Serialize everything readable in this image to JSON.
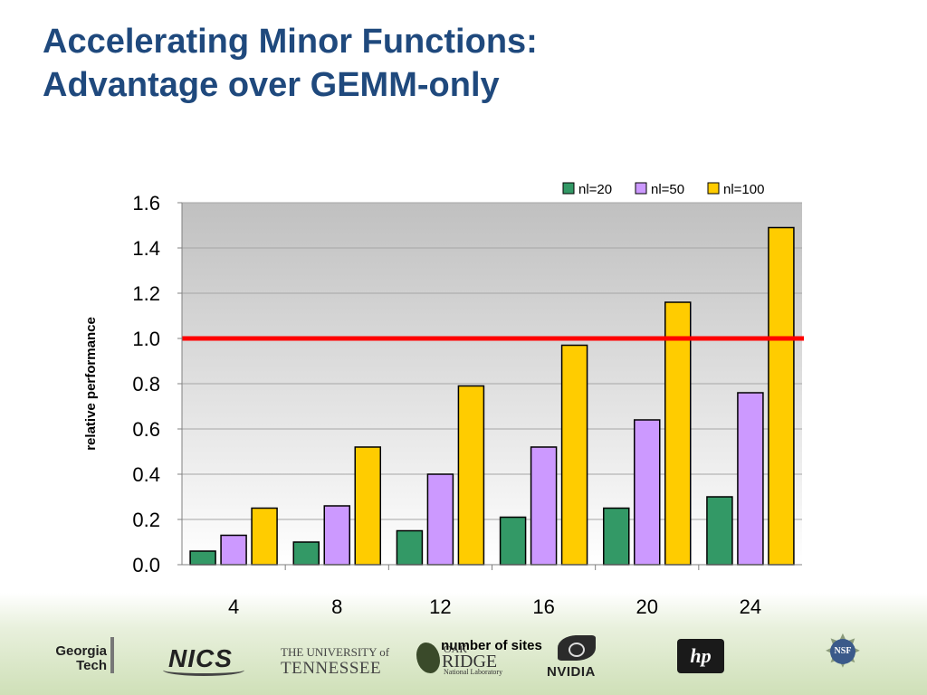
{
  "slide": {
    "title_line1": "Accelerating Minor Functions:",
    "title_line2": "Advantage over GEMM-only"
  },
  "logos": {
    "georgia_tech_line1": "Georgia",
    "georgia_tech_line2": "Tech",
    "nics": "NICS",
    "ut_line1": "THE UNIVERSITY of",
    "ut_line2": "TENNESSEE",
    "ornl_line1": "OAK",
    "ornl_line2": "RIDGE",
    "ornl_line3": "National Laboratory",
    "nvidia": "NVIDIA",
    "hp": "hp",
    "nsf": "NSF"
  },
  "chart_data": {
    "type": "bar",
    "title": "",
    "xlabel": "number of sites",
    "ylabel": "relative performance",
    "categories": [
      "4",
      "8",
      "12",
      "16",
      "20",
      "24"
    ],
    "series": [
      {
        "name": "nl=20",
        "color": "#339966",
        "values": [
          0.06,
          0.1,
          0.15,
          0.21,
          0.25,
          0.3
        ]
      },
      {
        "name": "nl=50",
        "color": "#cc99ff",
        "values": [
          0.13,
          0.26,
          0.4,
          0.52,
          0.64,
          0.76
        ]
      },
      {
        "name": "nl=100",
        "color": "#ffcc00",
        "values": [
          0.25,
          0.52,
          0.79,
          0.97,
          1.16,
          1.49
        ]
      }
    ],
    "yticks": [
      "0.0",
      "0.2",
      "0.4",
      "0.6",
      "0.8",
      "1.0",
      "1.2",
      "1.4",
      "1.6"
    ],
    "ylim": [
      0,
      1.6
    ],
    "reference_line": {
      "value": 1.0,
      "color": "#ff0000"
    },
    "grid": true,
    "legend_position": "top-right",
    "plot_background": "gradient gray to white"
  }
}
